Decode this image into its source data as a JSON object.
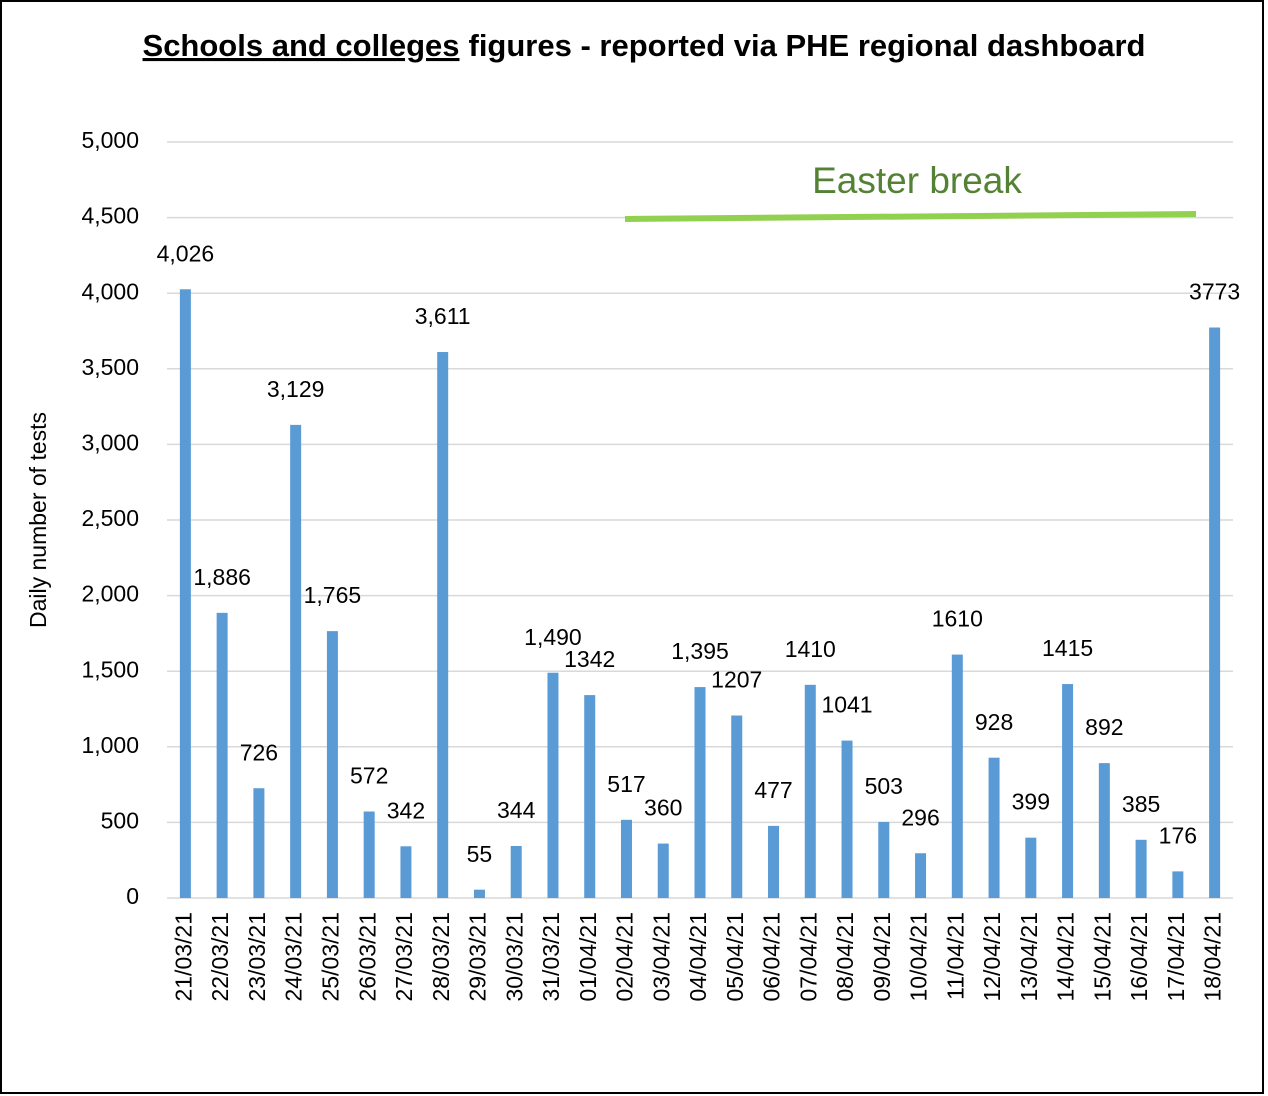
{
  "chart_data": {
    "type": "bar",
    "title": {
      "underlined": "Schools and colleges",
      "rest": "figures - reported via PHE regional dashboard"
    },
    "ylabel": "Daily number of tests",
    "annotation": "Easter break",
    "annotation_color": "#548235",
    "annotation_line_color": "#92d050",
    "categories": [
      "21/03/21",
      "22/03/21",
      "23/03/21",
      "24/03/21",
      "25/03/21",
      "26/03/21",
      "27/03/21",
      "28/03/21",
      "29/03/21",
      "30/03/21",
      "31/03/21",
      "01/04/21",
      "02/04/21",
      "03/04/21",
      "04/04/21",
      "05/04/21",
      "06/04/21",
      "07/04/21",
      "08/04/21",
      "09/04/21",
      "10/04/21",
      "11/04/21",
      "12/04/21",
      "13/04/21",
      "14/04/21",
      "15/04/21",
      "16/04/21",
      "17/04/21",
      "18/04/21"
    ],
    "values": [
      4026,
      1886,
      726,
      3129,
      1765,
      572,
      342,
      3611,
      55,
      344,
      1490,
      1342,
      517,
      360,
      1395,
      1207,
      477,
      1410,
      1041,
      503,
      296,
      1610,
      928,
      399,
      1415,
      892,
      385,
      176,
      3773
    ],
    "value_labels": [
      "4,026",
      "1,886",
      "726",
      "3,129",
      "1,765",
      "572",
      "342",
      "3,611",
      "55",
      "344",
      "1,490",
      "1342",
      "517",
      "360",
      "1,395",
      "1207",
      "477",
      "1410",
      "1041",
      "503",
      "296",
      "1610",
      "928",
      "399",
      "1415",
      "892",
      "385",
      "176",
      "3773"
    ],
    "color": "#5b9bd5",
    "ylim": [
      0,
      5000
    ],
    "yticks": [
      0,
      500,
      {
        "value": 1000,
        "label": "1,000"
      },
      {
        "value": 1500,
        "label": "1,500"
      },
      {
        "value": 2000,
        "label": "2,000"
      },
      {
        "value": 2500,
        "label": "2,500"
      },
      {
        "value": 3000,
        "label": "3,000"
      },
      {
        "value": 3500,
        "label": "3,500"
      },
      {
        "value": 4000,
        "label": "4,000"
      },
      {
        "value": 4500,
        "label": "4,500"
      },
      {
        "value": 5000,
        "label": "5,000"
      }
    ],
    "grid": true
  }
}
